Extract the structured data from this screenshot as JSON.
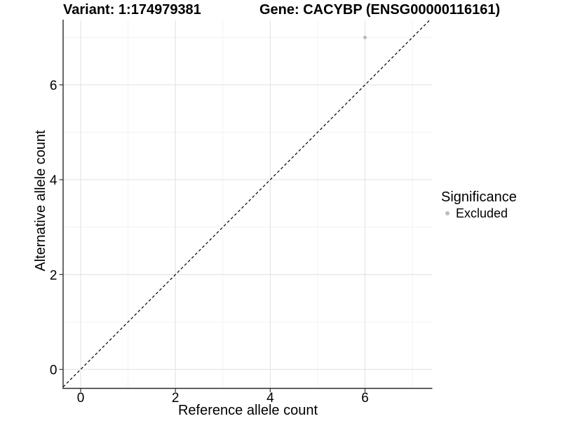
{
  "chart_data": {
    "type": "scatter",
    "title_left": "Variant: 1:174979381",
    "title_right": "Gene: CACYBP (ENSG00000116161)",
    "xlabel": "Reference allele count",
    "ylabel": "Alternative allele count",
    "xlim": [
      -0.37,
      7.42
    ],
    "ylim": [
      -0.4,
      7.36
    ],
    "x_major_ticks": [
      0,
      2,
      4,
      6
    ],
    "x_minor_ticks": [
      1,
      3,
      5,
      7
    ],
    "y_major_ticks": [
      0,
      2,
      4,
      6
    ],
    "y_minor_ticks": [
      1,
      3,
      5,
      7
    ],
    "grid": {
      "show": true,
      "major_color": "#e3e3e3",
      "minor_color": "#efefef"
    },
    "reference_line": {
      "kind": "identity y=x",
      "slope": 1,
      "intercept": 0,
      "style": "dashed",
      "color": "#000000"
    },
    "series": [
      {
        "name": "Excluded",
        "color": "#bcbcbc",
        "marker": "circle",
        "marker_radius": 2.6,
        "points": [
          {
            "x": 6,
            "y": 7
          }
        ]
      }
    ],
    "legend": {
      "title": "Significance",
      "position": "right",
      "items": [
        {
          "label": "Excluded",
          "color": "#bcbcbc",
          "marker": "circle"
        }
      ]
    }
  }
}
